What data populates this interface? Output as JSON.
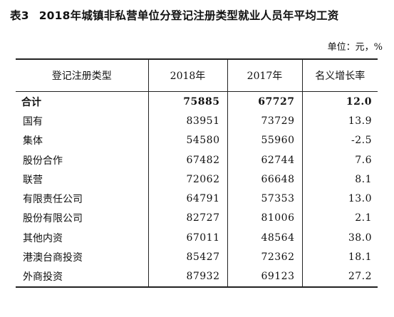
{
  "title": {
    "label": "表3",
    "text": "2018年城镇非私营单位分登记注册类型就业人员年平均工资"
  },
  "unit": "单位：元，%",
  "table": {
    "headers": [
      "登记注册类型",
      "2018年",
      "2017年",
      "名义增长率"
    ],
    "rows": [
      {
        "type": "合计",
        "y2018": "75885",
        "y2017": "67727",
        "growth": "12.0"
      },
      {
        "type": "国有",
        "y2018": "83951",
        "y2017": "73729",
        "growth": "13.9"
      },
      {
        "type": "集体",
        "y2018": "54580",
        "y2017": "55960",
        "growth": "-2.5"
      },
      {
        "type": "股份合作",
        "y2018": "67482",
        "y2017": "62744",
        "growth": "7.6"
      },
      {
        "type": "联营",
        "y2018": "72062",
        "y2017": "66648",
        "growth": "8.1"
      },
      {
        "type": "有限责任公司",
        "y2018": "64791",
        "y2017": "57353",
        "growth": "13.0"
      },
      {
        "type": "股份有限公司",
        "y2018": "82727",
        "y2017": "81006",
        "growth": "2.1"
      },
      {
        "type": "其他内资",
        "y2018": "67011",
        "y2017": "48564",
        "growth": "38.0"
      },
      {
        "type": "港澳台商投资",
        "y2018": "85427",
        "y2017": "72362",
        "growth": "18.1"
      },
      {
        "type": "外商投资",
        "y2018": "87932",
        "y2017": "69123",
        "growth": "27.2"
      }
    ]
  }
}
